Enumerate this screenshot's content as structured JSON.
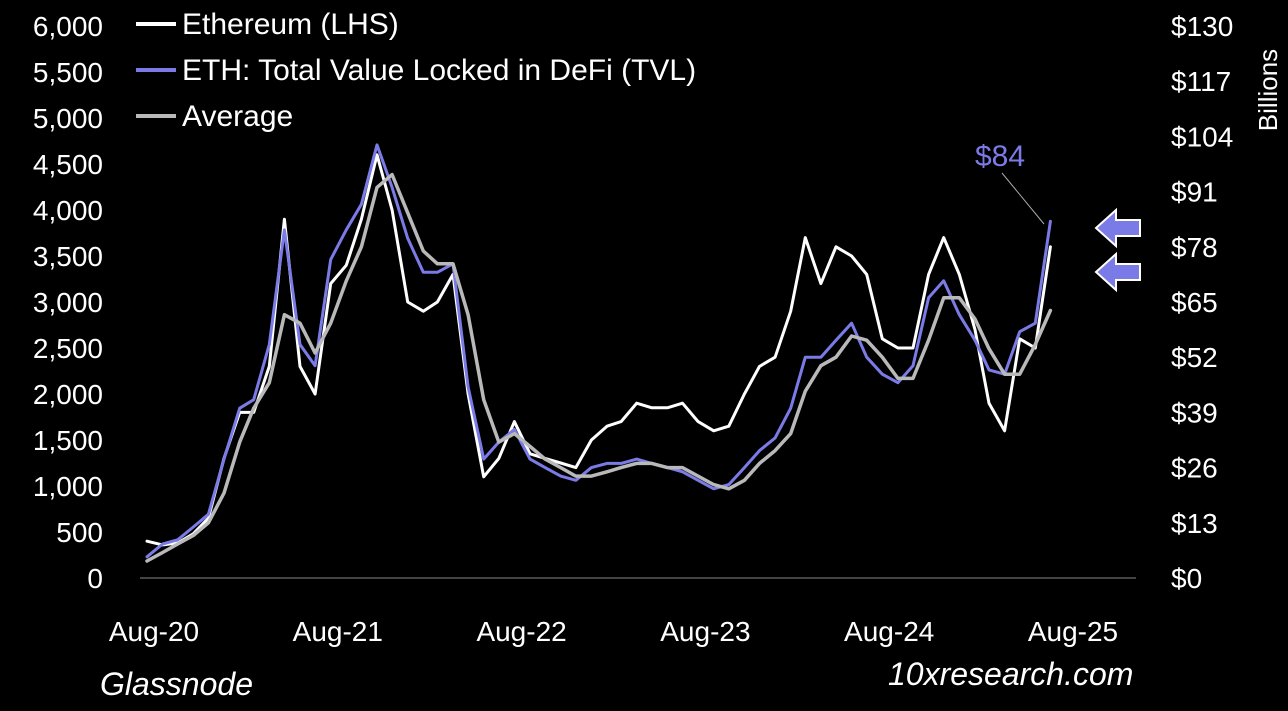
{
  "chart_data": {
    "type": "line",
    "title": "",
    "x_tick_labels": [
      "Aug-20",
      "Aug-21",
      "Aug-22",
      "Aug-23",
      "Aug-24",
      "Aug-25"
    ],
    "left_axis": {
      "ylim": [
        0,
        6000
      ],
      "tick_labels": [
        "0",
        "500",
        "1,000",
        "1,500",
        "2,000",
        "2,500",
        "3,000",
        "3,500",
        "4,000",
        "4,500",
        "5,000",
        "5,500",
        "6,000"
      ]
    },
    "right_axis": {
      "label": "Billions",
      "ylim": [
        0,
        130
      ],
      "tick_labels": [
        "$0",
        "$13",
        "$26",
        "$39",
        "$52",
        "$65",
        "$78",
        "$91",
        "$104",
        "$117",
        "$130"
      ]
    },
    "grid": false,
    "legend_position": "top-left",
    "series": [
      {
        "name": "Ethereum (LHS)",
        "axis": "left",
        "color": "#ffffff",
        "points": [
          [
            "2020-08",
            400
          ],
          [
            "2020-09",
            360
          ],
          [
            "2020-10",
            380
          ],
          [
            "2020-11",
            480
          ],
          [
            "2020-12",
            650
          ],
          [
            "2021-01",
            1300
          ],
          [
            "2021-02",
            1800
          ],
          [
            "2021-03",
            1800
          ],
          [
            "2021-04",
            2300
          ],
          [
            "2021-05",
            3900
          ],
          [
            "2021-06",
            2300
          ],
          [
            "2021-07",
            2000
          ],
          [
            "2021-08",
            3200
          ],
          [
            "2021-09",
            3400
          ],
          [
            "2021-10",
            3900
          ],
          [
            "2021-11",
            4600
          ],
          [
            "2021-12",
            4000
          ],
          [
            "2022-01",
            3000
          ],
          [
            "2022-02",
            2900
          ],
          [
            "2022-03",
            3000
          ],
          [
            "2022-04",
            3300
          ],
          [
            "2022-05",
            2000
          ],
          [
            "2022-06",
            1100
          ],
          [
            "2022-07",
            1300
          ],
          [
            "2022-08",
            1700
          ],
          [
            "2022-09",
            1350
          ],
          [
            "2022-10",
            1300
          ],
          [
            "2022-11",
            1250
          ],
          [
            "2022-12",
            1200
          ],
          [
            "2023-01",
            1500
          ],
          [
            "2023-02",
            1650
          ],
          [
            "2023-03",
            1700
          ],
          [
            "2023-04",
            1900
          ],
          [
            "2023-05",
            1850
          ],
          [
            "2023-06",
            1850
          ],
          [
            "2023-07",
            1900
          ],
          [
            "2023-08",
            1700
          ],
          [
            "2023-09",
            1600
          ],
          [
            "2023-10",
            1650
          ],
          [
            "2023-11",
            2000
          ],
          [
            "2023-12",
            2300
          ],
          [
            "2024-01",
            2400
          ],
          [
            "2024-02",
            2900
          ],
          [
            "2024-03",
            3700
          ],
          [
            "2024-04",
            3200
          ],
          [
            "2024-05",
            3600
          ],
          [
            "2024-06",
            3500
          ],
          [
            "2024-07",
            3300
          ],
          [
            "2024-08",
            2600
          ],
          [
            "2024-09",
            2500
          ],
          [
            "2024-10",
            2500
          ],
          [
            "2024-11",
            3300
          ],
          [
            "2024-12",
            3700
          ],
          [
            "2025-01",
            3300
          ],
          [
            "2025-02",
            2700
          ],
          [
            "2025-03",
            1900
          ],
          [
            "2025-04",
            1600
          ],
          [
            "2025-05",
            2600
          ],
          [
            "2025-06",
            2500
          ],
          [
            "2025-07",
            3600
          ]
        ]
      },
      {
        "name": "ETH: Total Value Locked in DeFi (TVL)",
        "axis": "right",
        "color": "#7b7be8",
        "points": [
          [
            "2020-08",
            5
          ],
          [
            "2020-09",
            8
          ],
          [
            "2020-10",
            9
          ],
          [
            "2020-11",
            12
          ],
          [
            "2020-12",
            15
          ],
          [
            "2021-01",
            28
          ],
          [
            "2021-02",
            40
          ],
          [
            "2021-03",
            42
          ],
          [
            "2021-04",
            55
          ],
          [
            "2021-05",
            82
          ],
          [
            "2021-06",
            55
          ],
          [
            "2021-07",
            50
          ],
          [
            "2021-08",
            75
          ],
          [
            "2021-09",
            82
          ],
          [
            "2021-10",
            88
          ],
          [
            "2021-11",
            102
          ],
          [
            "2021-12",
            92
          ],
          [
            "2022-01",
            80
          ],
          [
            "2022-02",
            72
          ],
          [
            "2022-03",
            72
          ],
          [
            "2022-04",
            74
          ],
          [
            "2022-05",
            45
          ],
          [
            "2022-06",
            28
          ],
          [
            "2022-07",
            32
          ],
          [
            "2022-08",
            35
          ],
          [
            "2022-09",
            28
          ],
          [
            "2022-10",
            26
          ],
          [
            "2022-11",
            24
          ],
          [
            "2022-12",
            23
          ],
          [
            "2023-01",
            26
          ],
          [
            "2023-02",
            27
          ],
          [
            "2023-03",
            27
          ],
          [
            "2023-04",
            28
          ],
          [
            "2023-05",
            27
          ],
          [
            "2023-06",
            26
          ],
          [
            "2023-07",
            25
          ],
          [
            "2023-08",
            23
          ],
          [
            "2023-09",
            21
          ],
          [
            "2023-10",
            22
          ],
          [
            "2023-11",
            26
          ],
          [
            "2023-12",
            30
          ],
          [
            "2024-01",
            33
          ],
          [
            "2024-02",
            40
          ],
          [
            "2024-03",
            52
          ],
          [
            "2024-04",
            52
          ],
          [
            "2024-05",
            56
          ],
          [
            "2024-06",
            60
          ],
          [
            "2024-07",
            52
          ],
          [
            "2024-08",
            48
          ],
          [
            "2024-09",
            46
          ],
          [
            "2024-10",
            50
          ],
          [
            "2024-11",
            66
          ],
          [
            "2024-12",
            70
          ],
          [
            "2025-01",
            62
          ],
          [
            "2025-02",
            56
          ],
          [
            "2025-03",
            49
          ],
          [
            "2025-04",
            48
          ],
          [
            "2025-05",
            58
          ],
          [
            "2025-06",
            60
          ],
          [
            "2025-07",
            84
          ]
        ]
      },
      {
        "name": "Average",
        "axis": "right",
        "color": "#b9b9b9",
        "points": [
          [
            "2020-08",
            4
          ],
          [
            "2020-09",
            6
          ],
          [
            "2020-10",
            8
          ],
          [
            "2020-11",
            10
          ],
          [
            "2020-12",
            13
          ],
          [
            "2021-01",
            20
          ],
          [
            "2021-02",
            32
          ],
          [
            "2021-03",
            40
          ],
          [
            "2021-04",
            46
          ],
          [
            "2021-05",
            62
          ],
          [
            "2021-06",
            60
          ],
          [
            "2021-07",
            53
          ],
          [
            "2021-08",
            60
          ],
          [
            "2021-09",
            70
          ],
          [
            "2021-10",
            78
          ],
          [
            "2021-11",
            92
          ],
          [
            "2021-12",
            95
          ],
          [
            "2022-01",
            86
          ],
          [
            "2022-02",
            77
          ],
          [
            "2022-03",
            74
          ],
          [
            "2022-04",
            74
          ],
          [
            "2022-05",
            62
          ],
          [
            "2022-06",
            42
          ],
          [
            "2022-07",
            32
          ],
          [
            "2022-08",
            34
          ],
          [
            "2022-09",
            31
          ],
          [
            "2022-10",
            28
          ],
          [
            "2022-11",
            26
          ],
          [
            "2022-12",
            24
          ],
          [
            "2023-01",
            24
          ],
          [
            "2023-02",
            25
          ],
          [
            "2023-03",
            26
          ],
          [
            "2023-04",
            27
          ],
          [
            "2023-05",
            27
          ],
          [
            "2023-06",
            26
          ],
          [
            "2023-07",
            26
          ],
          [
            "2023-08",
            24
          ],
          [
            "2023-09",
            22
          ],
          [
            "2023-10",
            21
          ],
          [
            "2023-11",
            23
          ],
          [
            "2023-12",
            27
          ],
          [
            "2024-01",
            30
          ],
          [
            "2024-02",
            34
          ],
          [
            "2024-03",
            44
          ],
          [
            "2024-04",
            50
          ],
          [
            "2024-05",
            52
          ],
          [
            "2024-06",
            57
          ],
          [
            "2024-07",
            56
          ],
          [
            "2024-08",
            52
          ],
          [
            "2024-09",
            47
          ],
          [
            "2024-10",
            47
          ],
          [
            "2024-11",
            56
          ],
          [
            "2024-12",
            66
          ],
          [
            "2025-01",
            66
          ],
          [
            "2025-02",
            61
          ],
          [
            "2025-03",
            54
          ],
          [
            "2025-04",
            48
          ],
          [
            "2025-05",
            48
          ],
          [
            "2025-06",
            55
          ],
          [
            "2025-07",
            63
          ]
        ]
      }
    ],
    "annotations": [
      {
        "text": "$84",
        "color": "#7b7be8"
      }
    ]
  },
  "footer": {
    "source": "Glassnode",
    "website": "10xresearch.com"
  },
  "colors": {
    "background": "#000000",
    "arrow": "#7b7be8"
  },
  "icons": [
    "left-arrow-icon",
    "left-arrow-icon"
  ]
}
